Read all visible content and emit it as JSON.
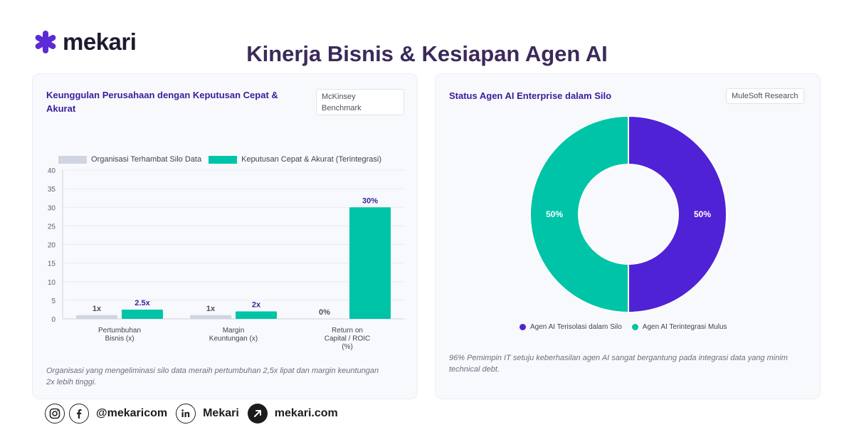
{
  "brand": {
    "name": "mekari",
    "accent": "#5b2bd6"
  },
  "title": "Kinerja Bisnis & Kesiapan Agen AI",
  "left_card": {
    "title": "Keunggulan Perusahaan dengan Keputusan Cepat & Akurat",
    "badge_line1": "McKinsey",
    "badge_line2": "Benchmark",
    "legend": [
      "Organisasi Terhambat Silo Data",
      "Keputusan Cepat & Akurat (Terintegrasi)"
    ],
    "note": "Organisasi yang mengeliminasi silo data meraih pertumbuhan 2,5x lipat dan margin keuntungan 2x lebih tinggi."
  },
  "right_card": {
    "title": "Status Agen AI Enterprise dalam Silo",
    "badge": "MuleSoft Research",
    "legend": [
      "Agen AI Terisolasi dalam Silo",
      "Agen AI Terintegrasi Mulus"
    ],
    "note": "96% Pemimpin IT setuju keberhasilan agen AI sangat bergantung pada integrasi data yang minim technical debt."
  },
  "chart_data": [
    {
      "type": "bar",
      "title": "Keunggulan Perusahaan dengan Keputusan Cepat & Akurat",
      "categories": [
        [
          "Pertumbuhan",
          "Bisnis (x)"
        ],
        [
          "Margin",
          "Keuntungan (x)"
        ],
        [
          "Return on",
          "Capital / ROIC",
          "(%)"
        ]
      ],
      "series": [
        {
          "name": "Organisasi Terhambat Silo Data",
          "values": [
            1,
            1,
            0
          ],
          "labels": [
            "1x",
            "1x",
            "0%"
          ],
          "color": "#cfd5e1"
        },
        {
          "name": "Keputusan Cepat & Akurat (Terintegrasi)",
          "values": [
            2.5,
            2,
            30
          ],
          "labels": [
            "2.5x",
            "2x",
            "30%"
          ],
          "color": "#00c4a7"
        }
      ],
      "ylim": [
        0,
        40
      ],
      "yticks": [
        0,
        5,
        10,
        15,
        20,
        25,
        30,
        35,
        40
      ],
      "grid": true,
      "legend": "top"
    },
    {
      "type": "pie",
      "donut": true,
      "title": "Status Agen AI Enterprise dalam Silo",
      "slices": [
        {
          "name": "Agen AI Terisolasi dalam Silo",
          "value": 50,
          "label": "50%",
          "color": "#4f22d6"
        },
        {
          "name": "Agen AI Terintegrasi Mulus",
          "value": 50,
          "label": "50%",
          "color": "#00c4a7"
        }
      ],
      "legend": "bottom"
    }
  ],
  "footer": {
    "handle": "@mekaricom",
    "linkedin": "Mekari",
    "website": "mekari.com"
  }
}
